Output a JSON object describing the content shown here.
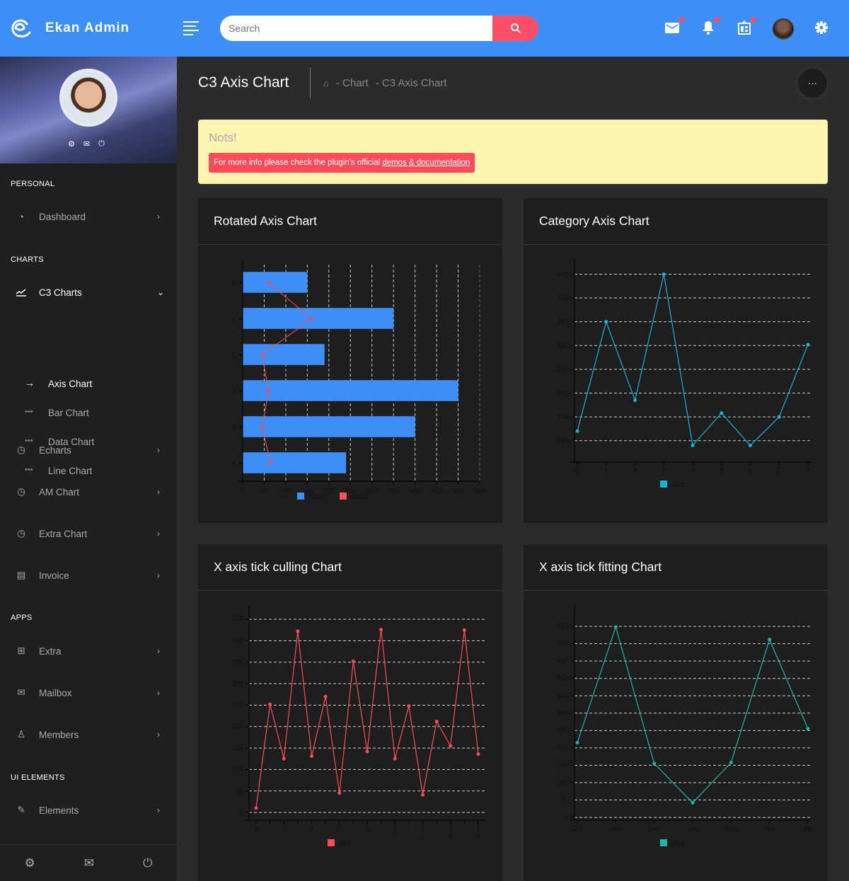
{
  "header": {
    "app_title": "Ekan Admin",
    "search_placeholder": "Search",
    "colors": {
      "topbar": "#3e8ef7",
      "accent": "#ff4c67"
    }
  },
  "sidebar": {
    "sections": [
      {
        "label": "PERSONAL",
        "items": [
          {
            "label": "Dashboard",
            "icon": "dashboard-icon"
          }
        ]
      },
      {
        "label": "CHARTS",
        "items": [
          {
            "label": "C3 Charts",
            "icon": "trending-icon",
            "expanded": true,
            "children": [
              {
                "label": "Axis Chart",
                "active": true
              },
              {
                "label": "Bar Chart"
              },
              {
                "label": "Data Chart"
              },
              {
                "label": "Line Chart"
              }
            ]
          },
          {
            "label": "Echarts",
            "icon": "pie-icon"
          },
          {
            "label": "AM Chart",
            "icon": "pie-icon"
          },
          {
            "label": "Extra Chart",
            "icon": "pie-icon"
          },
          {
            "label": "Invoice",
            "icon": "receipt-icon"
          }
        ]
      },
      {
        "label": "APPS",
        "items": [
          {
            "label": "Extra",
            "icon": "grid-icon"
          },
          {
            "label": "Mailbox",
            "icon": "mail-icon"
          },
          {
            "label": "Members",
            "icon": "user-icon"
          }
        ]
      },
      {
        "label": "UI ELEMENTS",
        "items": [
          {
            "label": "Elements",
            "icon": "edit-icon"
          }
        ]
      }
    ]
  },
  "page": {
    "title": "C3 Axis Chart",
    "breadcrumb": [
      "- Chart",
      "- C3 Axis Chart"
    ],
    "more_label": "···"
  },
  "alert": {
    "title": "Nots!",
    "message": "For more info please check the plugin's official",
    "link": "demos & documentation"
  },
  "cards": [
    {
      "title": "Rotated Axis Chart"
    },
    {
      "title": "Category Axis Chart"
    },
    {
      "title": "X axis tick culling Chart"
    },
    {
      "title": "X axis tick fitting Chart"
    }
  ],
  "chart_data": [
    {
      "type": "bar",
      "title": "Rotated Axis Chart",
      "rotated": true,
      "categories": [
        "0",
        "1",
        "2",
        "3",
        "4",
        "5"
      ],
      "series": [
        {
          "name": "data1",
          "type": "bar",
          "color": "#3e8ef7",
          "values": [
            150,
            350,
            190,
            500,
            400,
            240
          ]
        },
        {
          "name": "data2",
          "type": "line",
          "color": "#ff4c58",
          "values": [
            60,
            160,
            45,
            60,
            45,
            65
          ]
        }
      ],
      "xlim": [
        0,
        550
      ],
      "xticks": [
        0,
        50,
        100,
        150,
        200,
        250,
        300,
        350,
        400,
        450,
        500,
        550
      ],
      "grid": "x-dashed",
      "legend": "bottom"
    },
    {
      "type": "line",
      "title": "Category Axis Chart",
      "categories": [
        "0",
        "1",
        "2",
        "3",
        "4",
        "5",
        "6",
        "7",
        "8"
      ],
      "series": [
        {
          "name": "data",
          "color": "#17b3d8",
          "values": [
            120,
            350,
            185,
            450,
            90,
            158,
            90,
            150,
            302
          ]
        }
      ],
      "yticks": [
        100,
        150,
        200,
        250,
        300,
        350,
        400,
        450
      ],
      "grid": "y-dashed",
      "legend": "bottom"
    },
    {
      "type": "line",
      "title": "X axis tick culling Chart",
      "x": [
        0,
        1,
        2,
        3,
        4,
        5,
        6,
        7,
        8,
        9,
        10,
        11,
        12,
        13,
        14,
        15,
        16
      ],
      "xtick_labels": [
        "0",
        "2",
        "4",
        "6",
        "8",
        "10",
        "12",
        "14",
        "16"
      ],
      "series": [
        {
          "name": "data",
          "color": "#ff4c58",
          "values": [
            10,
            252,
            125,
            422,
            131,
            270,
            45,
            352,
            142,
            426,
            125,
            248,
            41,
            212,
            155,
            425,
            136
          ]
        }
      ],
      "yticks": [
        0,
        50,
        100,
        150,
        200,
        250,
        300,
        350,
        400,
        450
      ],
      "grid": "y-dashed",
      "legend": "bottom"
    },
    {
      "type": "line",
      "title": "X axis tick fitting Chart",
      "categories": [
        "Oct",
        "Nov",
        "Dec",
        "Jan",
        "Feb",
        "Mar",
        "Ap"
      ],
      "series": [
        {
          "name": "data",
          "color": "#1fb5a5",
          "values": [
            215,
            548,
            155,
            42,
            158,
            512,
            255
          ]
        }
      ],
      "yticks": [
        0,
        50,
        100,
        150,
        200,
        250,
        300,
        350,
        400,
        450,
        500,
        550
      ],
      "grid": "y-dashed",
      "legend": "bottom"
    }
  ]
}
